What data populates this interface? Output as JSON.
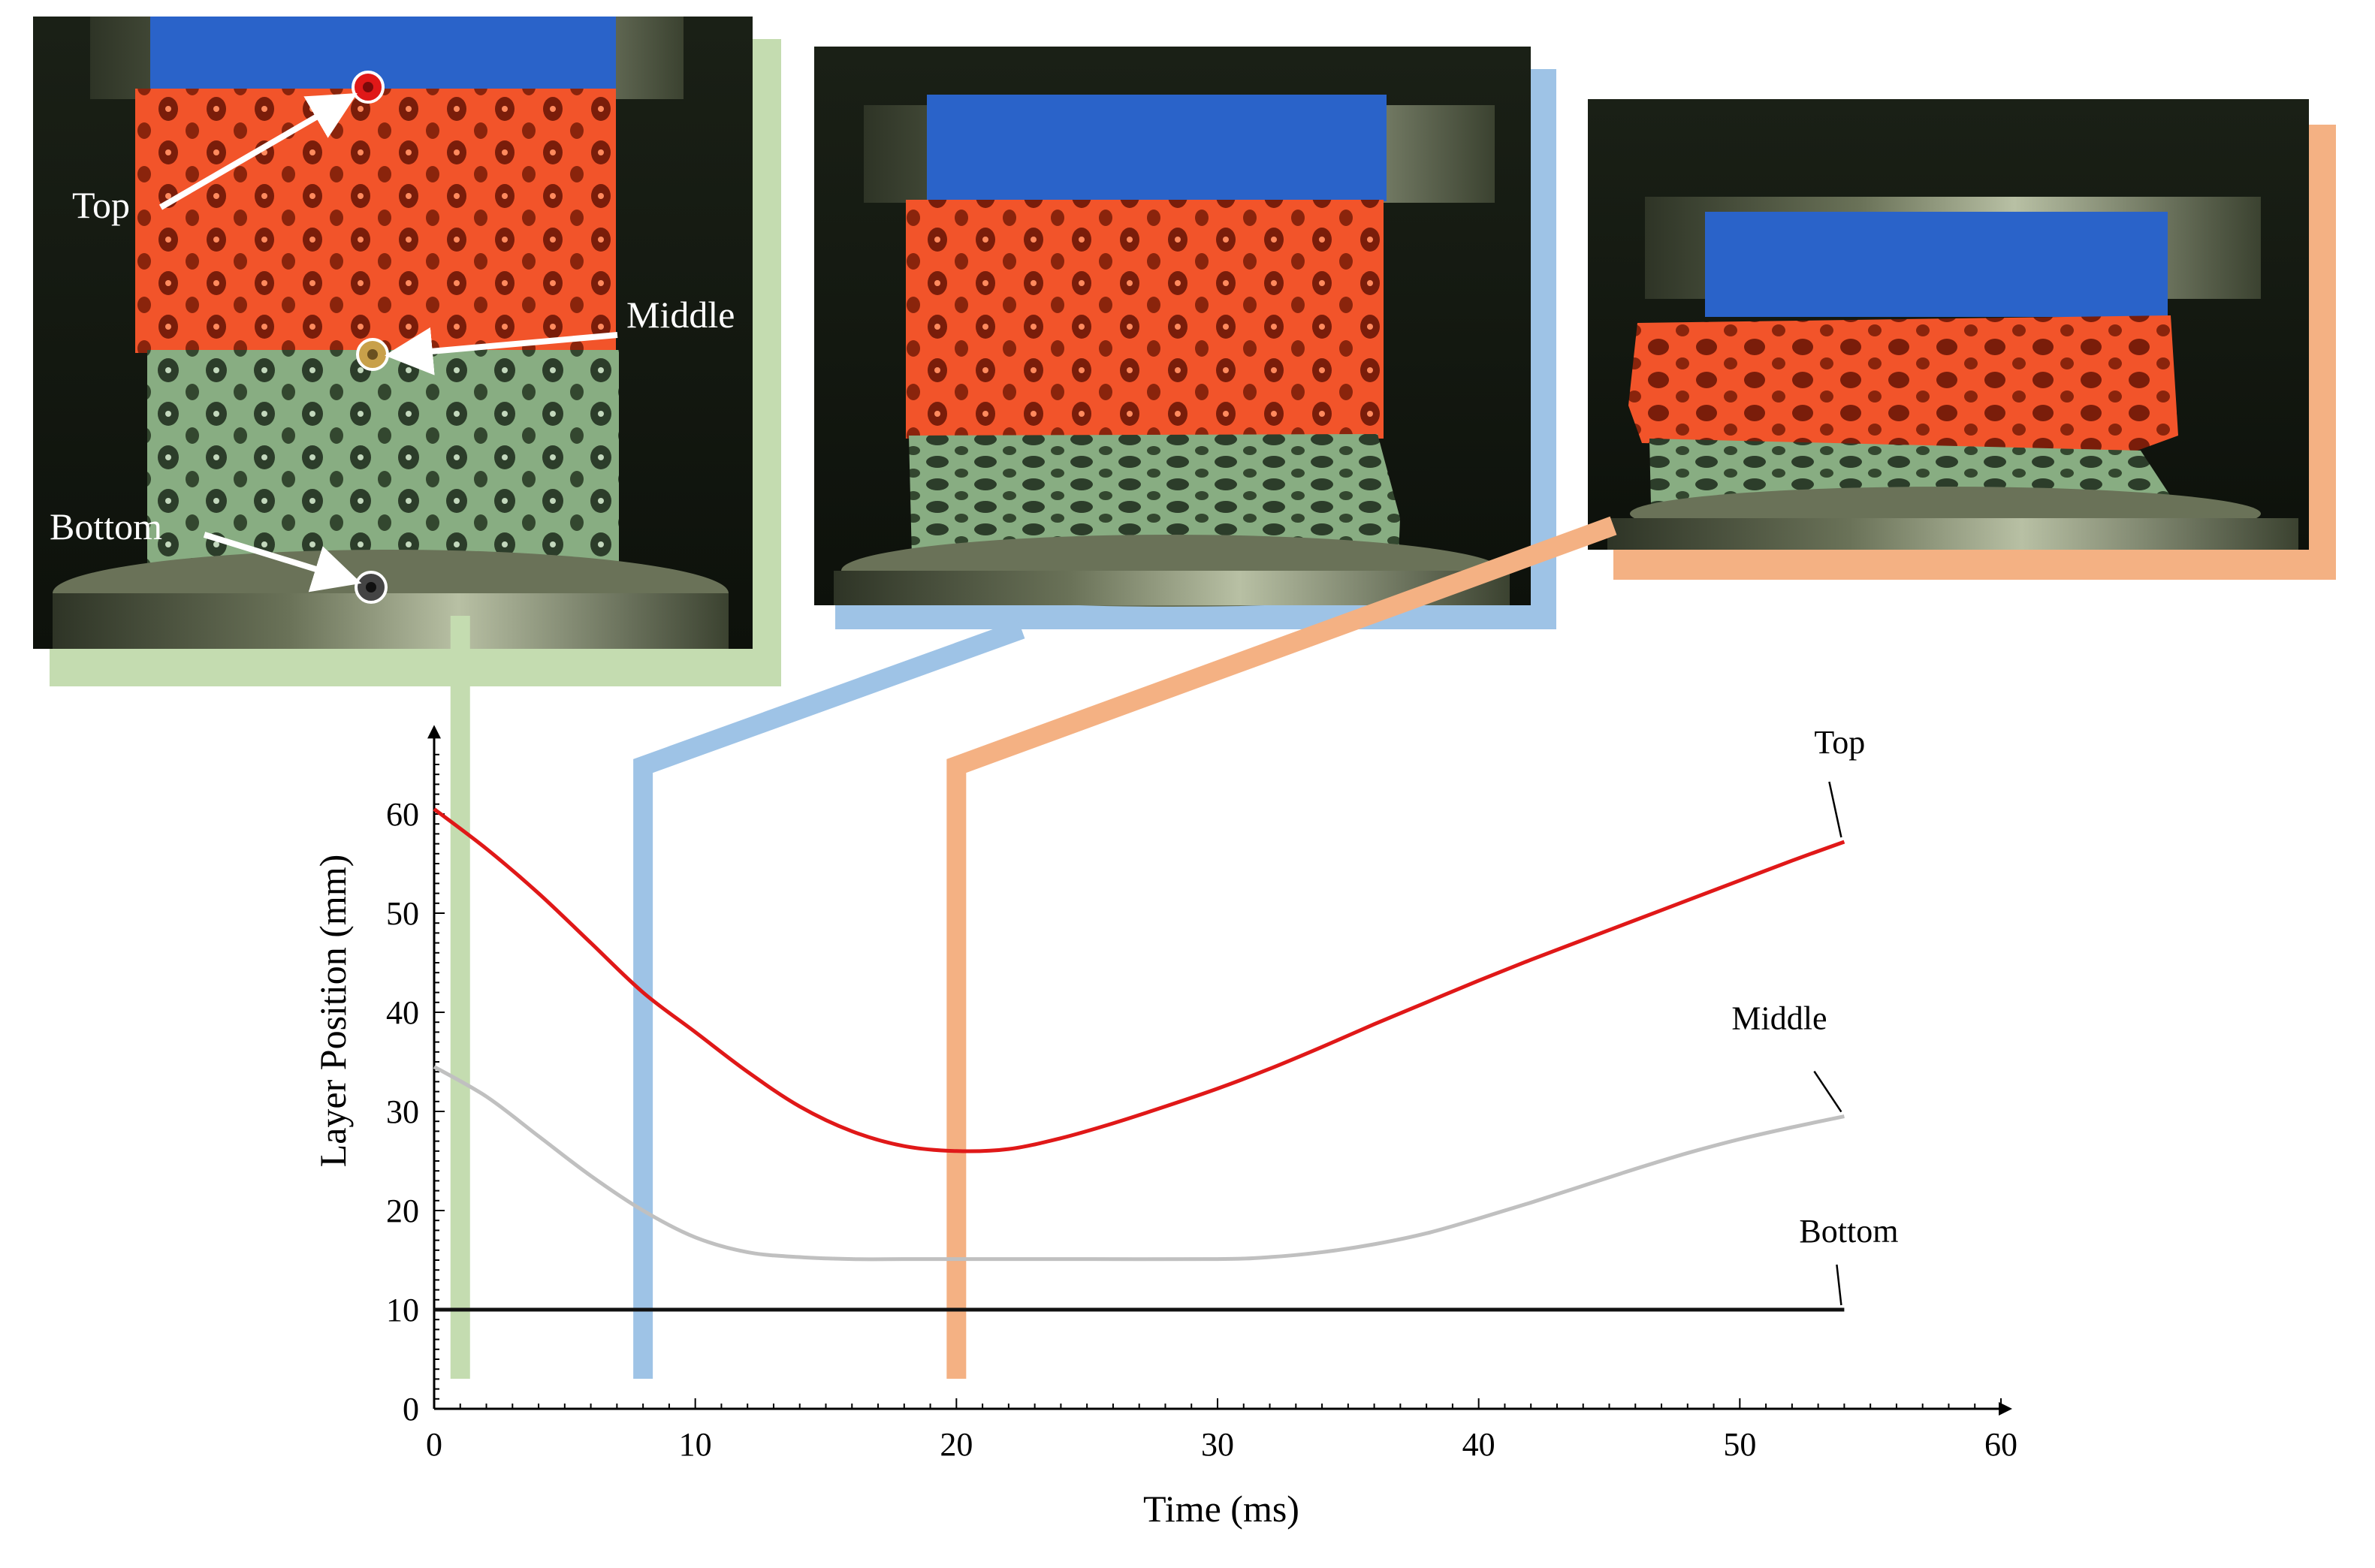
{
  "photos": [
    {
      "frame": "green",
      "labels": {
        "top": "Top",
        "middle": "Middle",
        "bottom": "Bottom"
      }
    },
    {
      "frame": "blue"
    },
    {
      "frame": "orange"
    }
  ],
  "colors": {
    "green_frame": "#c4dcb0",
    "blue_frame": "#9ec3e6",
    "orange_frame": "#f4b183",
    "top_line": "#e01818",
    "middle_line": "#c0c0c0",
    "bottom_line": "#111111",
    "lattice_red": "#f2542a",
    "lattice_green": "#7fa67a",
    "tape_blue": "#2a63c9"
  },
  "chart_data": {
    "type": "line",
    "xlabel": "Time (ms)",
    "ylabel": "Layer Position (mm)",
    "xlim": [
      0,
      60
    ],
    "ylim": [
      0,
      68
    ],
    "xticks": [
      "0",
      "10",
      "20",
      "30",
      "40",
      "50",
      "60"
    ],
    "yticks": [
      "0",
      "10",
      "20",
      "30",
      "40",
      "50",
      "60"
    ],
    "grid": false,
    "markers": [
      1,
      8,
      20
    ],
    "series": [
      {
        "name": "Top",
        "color": "#e01818",
        "x": [
          0,
          2,
          4,
          6,
          8,
          10,
          12,
          14,
          16,
          18,
          20,
          22,
          24,
          26,
          28,
          30,
          32,
          34,
          36,
          38,
          40,
          42,
          44,
          46,
          48,
          50,
          52,
          54
        ],
        "y": [
          60.5,
          56.5,
          52,
          47,
          42,
          38,
          34,
          30.5,
          28,
          26.5,
          26,
          26.2,
          27.3,
          28.8,
          30.5,
          32.3,
          34.3,
          36.5,
          38.8,
          41,
          43.2,
          45.3,
          47.3,
          49.3,
          51.3,
          53.3,
          55.3,
          57.2
        ]
      },
      {
        "name": "Middle",
        "color": "#c0c0c0",
        "x": [
          0,
          2,
          4,
          6,
          8,
          10,
          12,
          14,
          16,
          18,
          20,
          25,
          30,
          32,
          34,
          36,
          38,
          40,
          42,
          44,
          46,
          48,
          50,
          52,
          54
        ],
        "y": [
          34.5,
          31.5,
          27.5,
          23.5,
          20,
          17.3,
          15.8,
          15.3,
          15.1,
          15.1,
          15.1,
          15.1,
          15.1,
          15.3,
          15.8,
          16.6,
          17.7,
          19.2,
          20.8,
          22.5,
          24.2,
          25.8,
          27.2,
          28.4,
          29.5
        ]
      },
      {
        "name": "Bottom",
        "color": "#111111",
        "x": [
          0,
          54
        ],
        "y": [
          10,
          10
        ]
      }
    ]
  }
}
